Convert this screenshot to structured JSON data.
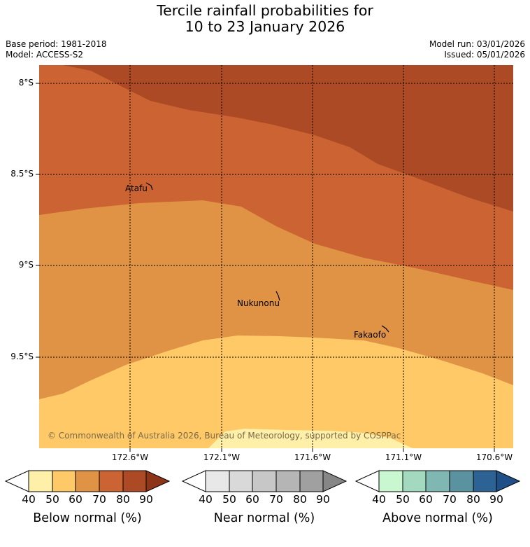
{
  "title": {
    "line1": "Tercile rainfall probabilities for",
    "line2": "10 to 23 January 2026"
  },
  "meta": {
    "base_period": "Base period: 1981-2018",
    "model": "Model: ACCESS-S2",
    "model_run": "Model run: 03/01/2026",
    "issued": "Issued: 05/01/2026"
  },
  "map": {
    "lat_labels": [
      "8°S",
      "8.5°S",
      "9°S",
      "9.5°S"
    ],
    "lon_labels": [
      "172.6°W",
      "172.1°W",
      "171.6°W",
      "171.1°W",
      "170.6°W"
    ],
    "places": [
      {
        "name": "Atafu"
      },
      {
        "name": "Nukunonu"
      },
      {
        "name": "Fakaofo"
      }
    ],
    "copyright": "© Commonwealth of Australia 2026, Bureau of Meteorology, supported by COSPPac",
    "zones": [
      {
        "category": "Below normal",
        "probability_band": "80-90"
      },
      {
        "category": "Below normal",
        "probability_band": "70-80"
      },
      {
        "category": "Below normal",
        "probability_band": "60-70"
      },
      {
        "category": "Below normal",
        "probability_band": "50-60"
      },
      {
        "category": "Below normal",
        "probability_band": "40-50"
      }
    ]
  },
  "colorbars": [
    {
      "label": "Below normal (%)",
      "ticks": [
        "40",
        "50",
        "60",
        "70",
        "80",
        "90"
      ],
      "colors": [
        "#ffffff",
        "#fef0a8",
        "#fec966",
        "#e09345",
        "#cb6432",
        "#ad4a26",
        "#8c3519"
      ]
    },
    {
      "label": "Near normal (%)",
      "ticks": [
        "40",
        "50",
        "60",
        "70",
        "80",
        "90"
      ],
      "colors": [
        "#ffffff",
        "#e8e8e8",
        "#d9d9d9",
        "#c7c7c7",
        "#b5b5b5",
        "#a0a0a0",
        "#868686"
      ]
    },
    {
      "label": "Above normal (%)",
      "ticks": [
        "40",
        "50",
        "60",
        "70",
        "80",
        "90"
      ],
      "colors": [
        "#ffffff",
        "#c9f7cf",
        "#a3d9be",
        "#7fb7b2",
        "#5a92a0",
        "#2d6294",
        "#1f4f87"
      ]
    }
  ],
  "zone_colors": {
    "b80": "#ad4a26",
    "b70": "#cb6432",
    "b60": "#e09345",
    "b50": "#fec966",
    "b40": "#fef0a8"
  }
}
